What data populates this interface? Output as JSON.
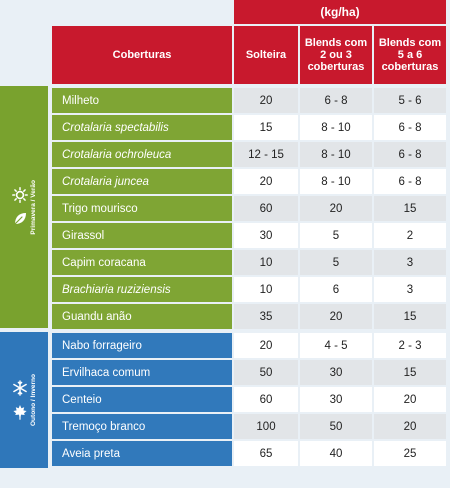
{
  "header": {
    "unit": "(kg/ha)",
    "coverage": "Coberturas",
    "solteira": "Solteira",
    "blend_2_3": "Blends com 2 ou 3 coberturas",
    "blend_5_6": "Blends com 5 a 6 coberturas"
  },
  "seasons": {
    "spring_label": "Primavera / Verão",
    "autumn_label": "Outono / Inverno"
  },
  "rows": [
    {
      "name": "Milheto",
      "italic": false,
      "season": "spring",
      "solteira": "20",
      "b23": "6 - 8",
      "b56": "5 - 6"
    },
    {
      "name": "Crotalaria spectabilis",
      "italic": true,
      "season": "spring",
      "solteira": "15",
      "b23": "8 - 10",
      "b56": "6 - 8"
    },
    {
      "name": "Crotalaria ochroleuca",
      "italic": true,
      "season": "spring",
      "solteira": "12 - 15",
      "b23": "8 - 10",
      "b56": "6 - 8"
    },
    {
      "name": "Crotalaria juncea",
      "italic": true,
      "season": "spring",
      "solteira": "20",
      "b23": "8 - 10",
      "b56": "6 - 8"
    },
    {
      "name": "Trigo mourisco",
      "italic": false,
      "season": "spring",
      "solteira": "60",
      "b23": "20",
      "b56": "15"
    },
    {
      "name": "Girassol",
      "italic": false,
      "season": "spring",
      "solteira": "30",
      "b23": "5",
      "b56": "2"
    },
    {
      "name": "Capim coracana",
      "italic": false,
      "season": "spring",
      "solteira": "10",
      "b23": "5",
      "b56": "3"
    },
    {
      "name": "Brachiaria ruziziensis",
      "italic": true,
      "season": "spring",
      "solteira": "10",
      "b23": "6",
      "b56": "3"
    },
    {
      "name": "Guandu anão",
      "italic": false,
      "season": "spring",
      "solteira": "35",
      "b23": "20",
      "b56": "15"
    },
    {
      "name": "Nabo forrageiro",
      "italic": false,
      "season": "autumn",
      "solteira": "20",
      "b23": "4 - 5",
      "b56": "2 - 3"
    },
    {
      "name": "Ervilhaca comum",
      "italic": false,
      "season": "autumn",
      "solteira": "50",
      "b23": "30",
      "b56": "15"
    },
    {
      "name": "Centeio",
      "italic": false,
      "season": "autumn",
      "solteira": "60",
      "b23": "30",
      "b56": "20"
    },
    {
      "name": "Tremoço branco",
      "italic": false,
      "season": "autumn",
      "solteira": "100",
      "b23": "50",
      "b56": "20"
    },
    {
      "name": "Aveia preta",
      "italic": false,
      "season": "autumn",
      "solteira": "65",
      "b23": "40",
      "b56": "25"
    }
  ],
  "icons": {
    "spring": [
      "sun-icon",
      "leaf-icon"
    ],
    "autumn": [
      "snowflake-icon",
      "maple-leaf-icon"
    ]
  },
  "colors": {
    "header_red": "#c8192d",
    "spring_green": "#7fa534",
    "autumn_blue": "#3179bb"
  }
}
